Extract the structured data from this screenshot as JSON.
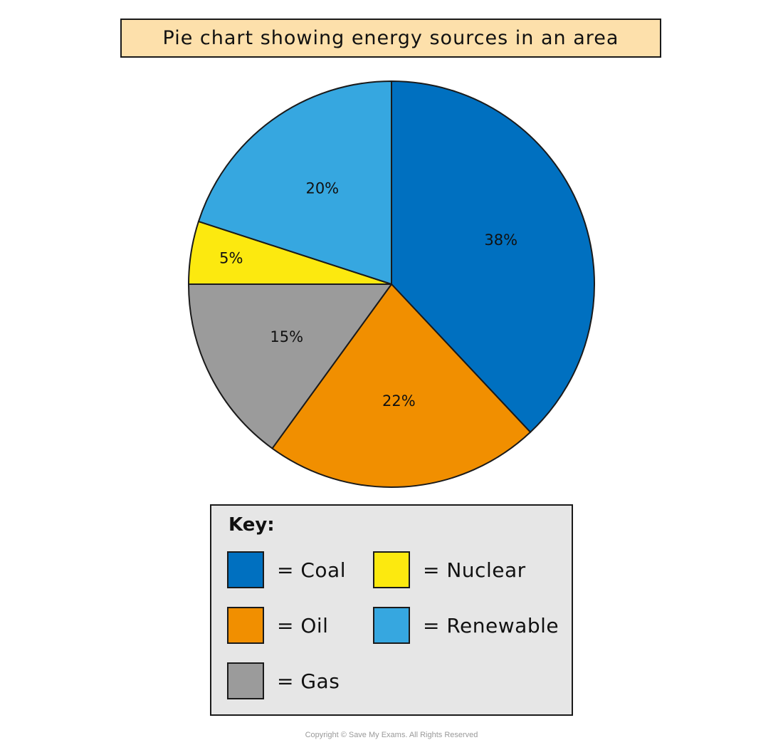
{
  "chart_data": {
    "type": "pie",
    "title": "Pie chart showing energy sources in an area",
    "legend_title": "Key:",
    "legend_position": "bottom",
    "slices": [
      {
        "name": "Coal",
        "value": 38,
        "label": "38%",
        "color": "#0070c0"
      },
      {
        "name": "Oil",
        "value": 22,
        "label": "22%",
        "color": "#f18f00"
      },
      {
        "name": "Gas",
        "value": 15,
        "label": "15%",
        "color": "#9b9b9b"
      },
      {
        "name": "Nuclear",
        "value": 5,
        "label": "5%",
        "color": "#fce90f"
      },
      {
        "name": "Renewable",
        "value": 20,
        "label": "20%",
        "color": "#36a7e0"
      }
    ]
  },
  "legend_items": [
    {
      "label": "= Coal",
      "color": "#0070c0"
    },
    {
      "label": "= Nuclear",
      "color": "#fce90f"
    },
    {
      "label": "= Oil",
      "color": "#f18f00"
    },
    {
      "label": "= Renewable",
      "color": "#36a7e0"
    },
    {
      "label": "= Gas",
      "color": "#9b9b9b"
    }
  ],
  "footer": {
    "copyright": "Copyright © Save My Exams. All Rights Reserved"
  }
}
